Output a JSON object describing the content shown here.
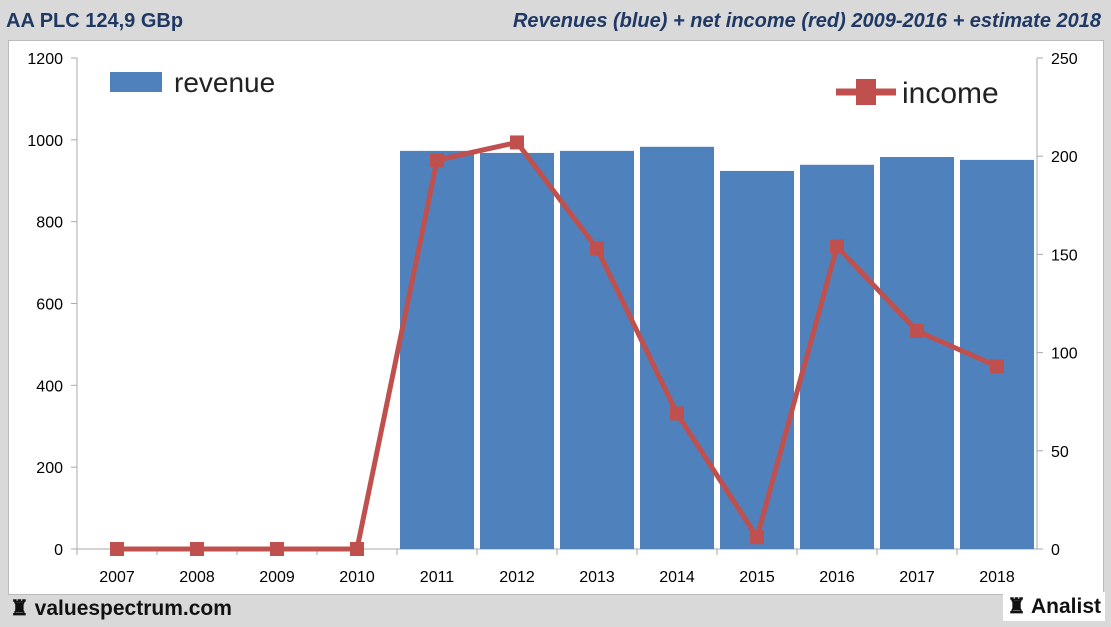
{
  "header": {
    "title": "AA PLC 124,9 GBp",
    "subtitle": "Revenues (blue) + net income (red) 2009-2016 + estimate 2018"
  },
  "footer": {
    "brand": "valuespectrum.com",
    "analist": "Analist",
    "brand_icon": "chess-rook-icon"
  },
  "chart_data": {
    "type": "bar+line",
    "categories": [
      "2007",
      "2008",
      "2009",
      "2010",
      "2011",
      "2012",
      "2013",
      "2014",
      "2015",
      "2016",
      "2017",
      "2018"
    ],
    "series": [
      {
        "name": "revenue",
        "type": "bar",
        "axis": "left",
        "color": "#4f81bd",
        "values": [
          0,
          0,
          0,
          0,
          973,
          968,
          973,
          983,
          924,
          939,
          958,
          951
        ]
      },
      {
        "name": "income",
        "type": "line",
        "axis": "right",
        "color": "#c0504d",
        "values": [
          0,
          0,
          0,
          0,
          198,
          207,
          153,
          69,
          6,
          154,
          111,
          93
        ]
      }
    ],
    "left_axis": {
      "ylim": [
        0,
        1200
      ],
      "ticks": [
        "0",
        "200",
        "400",
        "600",
        "800",
        "1000",
        "1200"
      ]
    },
    "right_axis": {
      "ylim": [
        0,
        250
      ],
      "ticks": [
        "0",
        "50",
        "100",
        "150",
        "200",
        "250"
      ]
    },
    "grid": false,
    "legend": {
      "revenue": "top-left",
      "income": "top-right"
    }
  }
}
